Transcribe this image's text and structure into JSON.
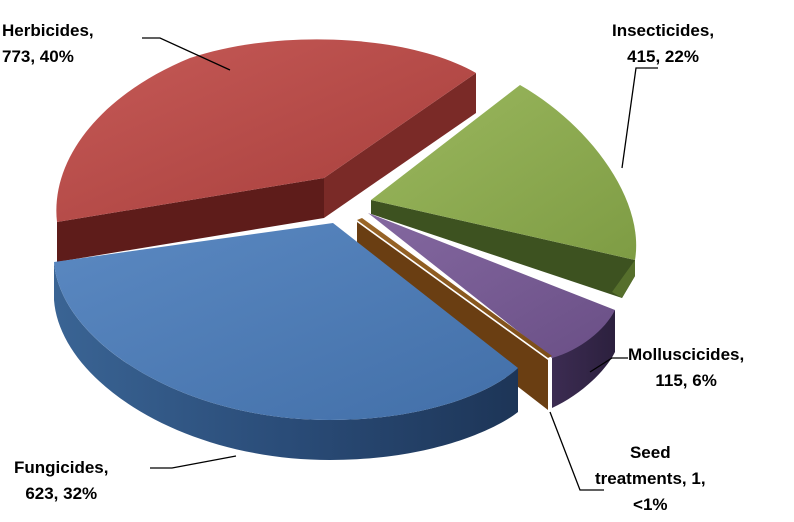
{
  "chart_data": {
    "type": "pie",
    "style": "3d-exploded",
    "legend": "none",
    "slices": [
      {
        "name": "Herbicides",
        "value": 773,
        "percent_label": "40%",
        "color": "#B64744",
        "line1": "Herbicides,",
        "line2": "773, 40%"
      },
      {
        "name": "Insecticides",
        "value": 415,
        "percent_label": "22%",
        "color": "#8CAA4E",
        "line1": "Insecticides,",
        "line2": "415, 22%"
      },
      {
        "name": "Molluscicides",
        "value": 115,
        "percent_label": "6%",
        "color": "#7A5D96",
        "line1": "Molluscicides,",
        "line2": "115, 6%"
      },
      {
        "name": "Seed treatments",
        "value": 1,
        "percent_label": "<1%",
        "color": "#8E5A1E",
        "line1": "Seed",
        "line2": "treatments, 1,",
        "line3": "<1%"
      },
      {
        "name": "Fungicides",
        "value": 623,
        "percent_label": "32%",
        "color": "#4F7DB8",
        "line1": "Fungicides,",
        "line2": "623, 32%"
      }
    ]
  }
}
